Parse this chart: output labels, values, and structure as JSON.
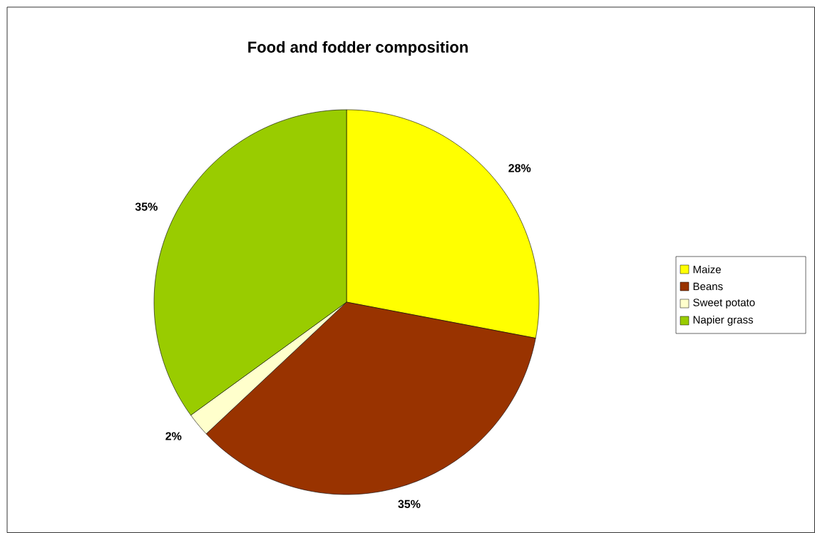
{
  "chart_data": {
    "type": "pie",
    "title": "Food and fodder composition",
    "categories": [
      "Maize",
      "Beans",
      "Sweet potato",
      "Napier grass"
    ],
    "values": [
      28,
      35,
      2,
      35
    ],
    "colors": [
      "#ffff00",
      "#993300",
      "#ffffcc",
      "#99cc00"
    ],
    "value_labels": [
      "28%",
      "35%",
      "2%",
      "35%"
    ],
    "legend": "right"
  }
}
